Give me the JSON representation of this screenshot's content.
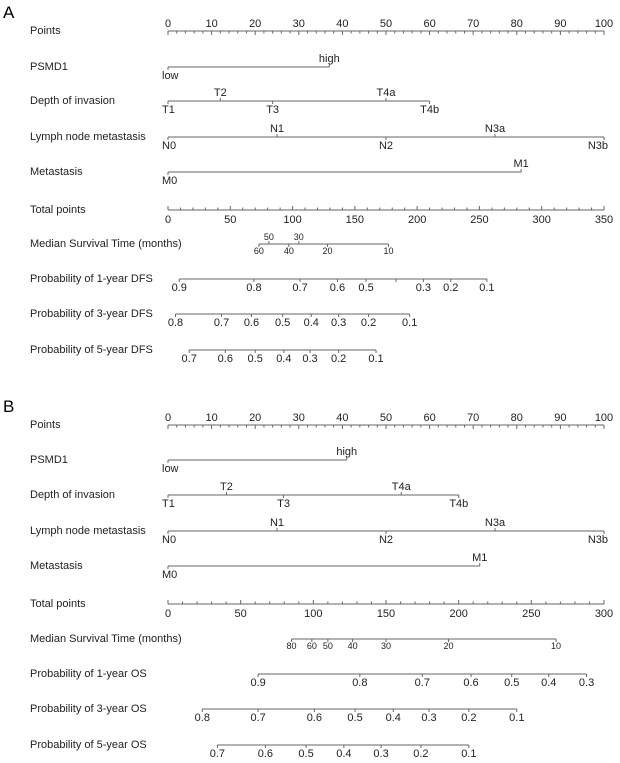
{
  "chart_data": {
    "type": "nomogram",
    "panels": [
      {
        "letter": "A",
        "total_points_max": 350,
        "rows": [
          {
            "kind": "points",
            "label": "Points",
            "ticks": [
              {
                "v": 0,
                "t": "0"
              },
              {
                "v": 10,
                "t": "10"
              },
              {
                "v": 20,
                "t": "20"
              },
              {
                "v": 30,
                "t": "30"
              },
              {
                "v": 40,
                "t": "40"
              },
              {
                "v": 50,
                "t": "50"
              },
              {
                "v": 60,
                "t": "60"
              },
              {
                "v": 70,
                "t": "70"
              },
              {
                "v": 80,
                "t": "80"
              },
              {
                "v": 90,
                "t": "90"
              },
              {
                "v": 100,
                "t": "100"
              }
            ]
          },
          {
            "kind": "variable",
            "label": "PSMD1",
            "levels": [
              {
                "v": 0,
                "t": "low",
                "pos": "below"
              },
              {
                "v": 37,
                "t": "high",
                "pos": "above"
              }
            ]
          },
          {
            "kind": "variable",
            "label": "Depth of invasion",
            "levels": [
              {
                "v": 0,
                "t": "T1",
                "pos": "below"
              },
              {
                "v": 12,
                "t": "T2",
                "pos": "above"
              },
              {
                "v": 24,
                "t": "T3",
                "pos": "below"
              },
              {
                "v": 50,
                "t": "T4a",
                "pos": "above"
              },
              {
                "v": 60,
                "t": "T4b",
                "pos": "below"
              }
            ]
          },
          {
            "kind": "variable",
            "label": "Lymph node metastasis",
            "levels": [
              {
                "v": 0,
                "t": "N0",
                "pos": "below"
              },
              {
                "v": 25,
                "t": "N1",
                "pos": "above"
              },
              {
                "v": 50,
                "t": "N2",
                "pos": "below"
              },
              {
                "v": 75,
                "t": "N3a",
                "pos": "above"
              },
              {
                "v": 100,
                "t": "N3b",
                "pos": "below"
              }
            ]
          },
          {
            "kind": "variable",
            "label": "Metastasis",
            "levels": [
              {
                "v": 0,
                "t": "M0",
                "pos": "below"
              },
              {
                "v": 81,
                "t": "M1",
                "pos": "above"
              }
            ]
          },
          {
            "kind": "total",
            "label": "Total points",
            "ticks": [
              {
                "v": 0,
                "t": "0"
              },
              {
                "v": 50,
                "t": "50"
              },
              {
                "v": 100,
                "t": "100"
              },
              {
                "v": 150,
                "t": "150"
              },
              {
                "v": 200,
                "t": "200"
              },
              {
                "v": 250,
                "t": "250"
              },
              {
                "v": 300,
                "t": "300"
              },
              {
                "v": 350,
                "t": "350"
              }
            ]
          },
          {
            "kind": "outcome",
            "label": "Median Survival Time (months)",
            "small": true,
            "ticks": [
              {
                "v": 73,
                "t": "60",
                "pos": "below"
              },
              {
                "v": 81,
                "t": "50",
                "pos": "above"
              },
              {
                "v": 97,
                "t": "40",
                "pos": "below"
              },
              {
                "v": 105,
                "t": "30",
                "pos": "above"
              },
              {
                "v": 128,
                "t": "20",
                "pos": "below"
              },
              {
                "v": 177,
                "t": "10",
                "pos": "below"
              }
            ]
          },
          {
            "kind": "outcome",
            "label": "Probability of 1-year DFS",
            "ticks": [
              {
                "v": 9,
                "t": "0.9"
              },
              {
                "v": 69,
                "t": "0.8"
              },
              {
                "v": 106,
                "t": "0.7"
              },
              {
                "v": 136,
                "t": "0.6"
              },
              {
                "v": 159,
                "t": "0.5"
              },
              {
                "v": 183,
                "t": ""
              },
              {
                "v": 205,
                "t": "0.3"
              },
              {
                "v": 227,
                "t": "0.2"
              },
              {
                "v": 256,
                "t": "0.1"
              }
            ]
          },
          {
            "kind": "outcome",
            "label": "Probability of 3-year DFS",
            "ticks": [
              {
                "v": 6,
                "t": "0.8"
              },
              {
                "v": 43,
                "t": "0.7"
              },
              {
                "v": 67,
                "t": "0.6"
              },
              {
                "v": 92,
                "t": "0.5"
              },
              {
                "v": 115,
                "t": "0.4"
              },
              {
                "v": 137,
                "t": "0.3"
              },
              {
                "v": 161,
                "t": "0.2"
              },
              {
                "v": 194,
                "t": "0.1"
              }
            ]
          },
          {
            "kind": "outcome",
            "label": "Probability of 5-year DFS",
            "ticks": [
              {
                "v": 17,
                "t": "0.7"
              },
              {
                "v": 46,
                "t": "0.6"
              },
              {
                "v": 70,
                "t": "0.5"
              },
              {
                "v": 93,
                "t": "0.4"
              },
              {
                "v": 114,
                "t": "0.3"
              },
              {
                "v": 137,
                "t": "0.2"
              },
              {
                "v": 167,
                "t": "0.1"
              }
            ]
          }
        ]
      },
      {
        "letter": "B",
        "total_points_max": 300,
        "rows": [
          {
            "kind": "points",
            "label": "Points",
            "ticks": [
              {
                "v": 0,
                "t": "0"
              },
              {
                "v": 10,
                "t": "10"
              },
              {
                "v": 20,
                "t": "20"
              },
              {
                "v": 30,
                "t": "30"
              },
              {
                "v": 40,
                "t": "40"
              },
              {
                "v": 50,
                "t": "50"
              },
              {
                "v": 60,
                "t": "60"
              },
              {
                "v": 70,
                "t": "70"
              },
              {
                "v": 80,
                "t": "80"
              },
              {
                "v": 90,
                "t": "90"
              },
              {
                "v": 100,
                "t": "100"
              }
            ]
          },
          {
            "kind": "variable",
            "label": "PSMD1",
            "levels": [
              {
                "v": 0,
                "t": "low",
                "pos": "below"
              },
              {
                "v": 41,
                "t": "high",
                "pos": "above"
              }
            ]
          },
          {
            "kind": "variable",
            "label": "Depth of invasion",
            "levels": [
              {
                "v": 0,
                "t": "T1",
                "pos": "below"
              },
              {
                "v": 13.4,
                "t": "T2",
                "pos": "above"
              },
              {
                "v": 26.5,
                "t": "T3",
                "pos": "below"
              },
              {
                "v": 53.5,
                "t": "T4a",
                "pos": "above"
              },
              {
                "v": 66.7,
                "t": "T4b",
                "pos": "below"
              }
            ]
          },
          {
            "kind": "variable",
            "label": "Lymph node metastasis",
            "levels": [
              {
                "v": 0,
                "t": "N0",
                "pos": "below"
              },
              {
                "v": 25,
                "t": "N1",
                "pos": "above"
              },
              {
                "v": 50,
                "t": "N2",
                "pos": "below"
              },
              {
                "v": 75,
                "t": "N3a",
                "pos": "above"
              },
              {
                "v": 100,
                "t": "N3b",
                "pos": "below"
              }
            ]
          },
          {
            "kind": "variable",
            "label": "Metastasis",
            "levels": [
              {
                "v": 0,
                "t": "M0",
                "pos": "below"
              },
              {
                "v": 71.5,
                "t": "M1",
                "pos": "above"
              }
            ]
          },
          {
            "kind": "total",
            "label": "Total points",
            "ticks": [
              {
                "v": 0,
                "t": "0"
              },
              {
                "v": 50,
                "t": "50"
              },
              {
                "v": 100,
                "t": "100"
              },
              {
                "v": 150,
                "t": "150"
              },
              {
                "v": 200,
                "t": "200"
              },
              {
                "v": 250,
                "t": "250"
              },
              {
                "v": 300,
                "t": "300"
              }
            ]
          },
          {
            "kind": "outcome",
            "label": "Median Survival Time (months)",
            "small": true,
            "ticks": [
              {
                "v": 85,
                "t": "80"
              },
              {
                "v": 99,
                "t": "60"
              },
              {
                "v": 110,
                "t": "50"
              },
              {
                "v": 127,
                "t": "40"
              },
              {
                "v": 150,
                "t": "30"
              },
              {
                "v": 193,
                "t": "20"
              },
              {
                "v": 267,
                "t": "10"
              }
            ]
          },
          {
            "kind": "outcome",
            "label": "Probability of 1-year OS",
            "ticks": [
              {
                "v": 62,
                "t": "0.9"
              },
              {
                "v": 132,
                "t": "0.8"
              },
              {
                "v": 175,
                "t": "0.7"
              },
              {
                "v": 208.5,
                "t": "0.6"
              },
              {
                "v": 236.5,
                "t": "0.5"
              },
              {
                "v": 262,
                "t": "0.4"
              },
              {
                "v": 288,
                "t": "0.3"
              }
            ]
          },
          {
            "kind": "outcome",
            "label": "Probability of 3-year OS",
            "ticks": [
              {
                "v": 23.6,
                "t": "0.8"
              },
              {
                "v": 62,
                "t": "0.7"
              },
              {
                "v": 100.7,
                "t": "0.6"
              },
              {
                "v": 128.7,
                "t": "0.5"
              },
              {
                "v": 155,
                "t": "0.4"
              },
              {
                "v": 179.6,
                "t": "0.3"
              },
              {
                "v": 207,
                "t": "0.2"
              },
              {
                "v": 240,
                "t": "0.1"
              }
            ]
          },
          {
            "kind": "outcome",
            "label": "Probability of 5-year OS",
            "ticks": [
              {
                "v": 34,
                "t": "0.7"
              },
              {
                "v": 67,
                "t": "0.6"
              },
              {
                "v": 95,
                "t": "0.5"
              },
              {
                "v": 121,
                "t": "0.4"
              },
              {
                "v": 146.6,
                "t": "0.3"
              },
              {
                "v": 174,
                "t": "0.2"
              },
              {
                "v": 207,
                "t": "0.1"
              }
            ]
          }
        ]
      }
    ]
  }
}
